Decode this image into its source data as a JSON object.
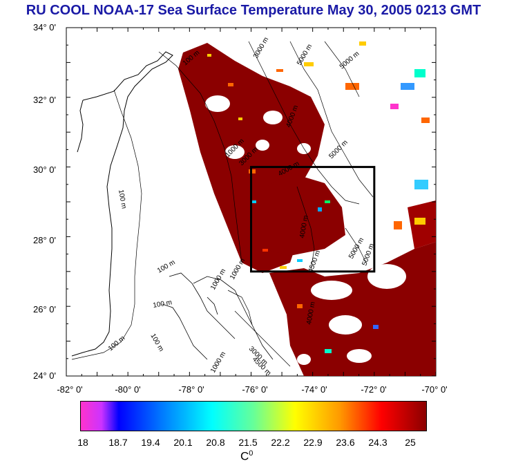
{
  "title": "RU COOL  NOAA-17 Sea Surface Temperature May 30, 2005 0213 GMT",
  "axes": {
    "lat_labels": [
      "34° 0'",
      "32° 0'",
      "30° 0'",
      "28° 0'",
      "26° 0'",
      "24° 0'"
    ],
    "lon_labels": [
      "-82° 0'",
      "-80° 0'",
      "-78° 0'",
      "-76° 0'",
      "-74° 0'",
      "-72° 0'",
      "-70° 0'"
    ]
  },
  "map": {
    "lat_range": [
      24,
      34
    ],
    "lon_range": [
      -82,
      -70
    ],
    "study_box": {
      "lon": [
        -76,
        -72
      ],
      "lat": [
        27,
        30
      ]
    },
    "contour_labels": [
      "100 m",
      "100 m",
      "100 m",
      "100 m",
      "100 m",
      "100 m",
      "1000 m",
      "1000 m",
      "1000 m",
      "1000 m",
      "3000 m",
      "3000 m",
      "3000 m",
      "4000 m",
      "4000 m",
      "4000 m",
      "4000 m",
      "4500 m",
      "4500 m",
      "5000 m",
      "5000 m",
      "5000 m",
      "5000 m",
      "5000 m"
    ]
  },
  "colorbar": {
    "tick_labels": [
      "18",
      "18.7",
      "19.4",
      "20.1",
      "20.8",
      "21.5",
      "22.2",
      "22.9",
      "23.6",
      "24.3",
      "25"
    ],
    "unit": "C",
    "unit_sup": "0",
    "colors": {
      "magenta": "#ff33cc",
      "blue": "#0000ff",
      "cyan": "#00ffff",
      "yellow": "#ffff00",
      "red": "#ff0000",
      "dark_red": "#8b0000"
    }
  },
  "colors": {
    "title": "#1a1aa6",
    "sst_warm": "#8b0000",
    "coast": "#000000"
  }
}
